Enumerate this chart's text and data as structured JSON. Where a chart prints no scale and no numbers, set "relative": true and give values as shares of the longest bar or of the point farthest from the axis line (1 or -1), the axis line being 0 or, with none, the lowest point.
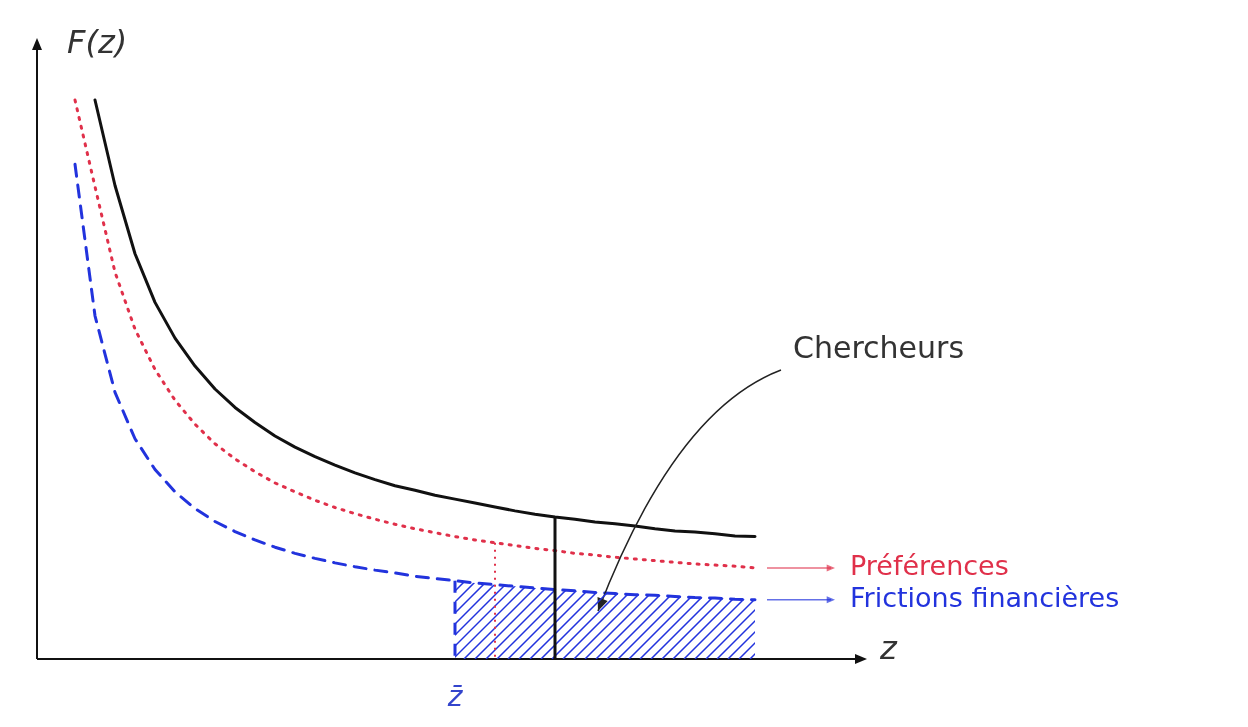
{
  "chart_data": {
    "type": "line",
    "relative": true,
    "tick_labels": false,
    "legend": "right",
    "grid": false,
    "xlabel": "z",
    "ylabel": "F(z)",
    "annotations": [
      "Chercheurs",
      "z̄"
    ],
    "categories": [
      null,
      null,
      null,
      null,
      null,
      null,
      null,
      null,
      null,
      null,
      null,
      null,
      null,
      null,
      null,
      null,
      null,
      null,
      null,
      null,
      null,
      null,
      null,
      null,
      null,
      null,
      null,
      null,
      null,
      null,
      null,
      null,
      null,
      null,
      null,
      null
    ],
    "series": [
      {
        "color": "#111111",
        "line_style": "solid",
        "values": [
          null,
          null,
          1,
          0.847,
          0.725,
          0.638,
          0.574,
          0.524,
          0.483,
          0.45,
          0.423,
          0.399,
          0.379,
          0.362,
          0.347,
          0.333,
          0.321,
          0.31,
          0.302,
          0.293,
          0.286,
          0.279,
          0.272,
          0.265,
          0.259,
          0.254,
          0.25,
          0.245,
          0.242,
          0.238,
          0.233,
          0.229,
          0.227,
          0.224,
          0.22,
          0.219
        ]
      },
      {
        "name": "Préférences",
        "color": "#e0304a",
        "line_style": "dotted",
        "values": [
          null,
          1,
          0.845,
          0.692,
          0.59,
          0.518,
          0.463,
          0.42,
          0.385,
          0.358,
          0.335,
          0.315,
          0.299,
          0.284,
          0.271,
          0.26,
          0.25,
          0.241,
          0.233,
          0.226,
          0.219,
          0.213,
          0.208,
          0.203,
          0.198,
          0.194,
          0.189,
          0.186,
          0.182,
          0.179,
          0.176,
          0.173,
          0.17,
          0.168,
          0.166,
          0.163
        ]
      },
      {
        "name": "Frictions financières",
        "color": "#2233dd",
        "line_style": "dashed",
        "values": [
          null,
          0.885,
          0.614,
          0.477,
          0.394,
          0.339,
          0.299,
          0.269,
          0.246,
          0.228,
          0.213,
          0.2,
          0.189,
          0.18,
          0.172,
          0.165,
          0.159,
          0.154,
          0.148,
          0.144,
          0.14,
          0.136,
          0.133,
          0.13,
          0.127,
          0.124,
          0.122,
          0.119,
          0.117,
          0.115,
          0.114,
          0.112,
          0.11,
          0.109,
          0.107,
          0.106
        ]
      }
    ]
  }
}
